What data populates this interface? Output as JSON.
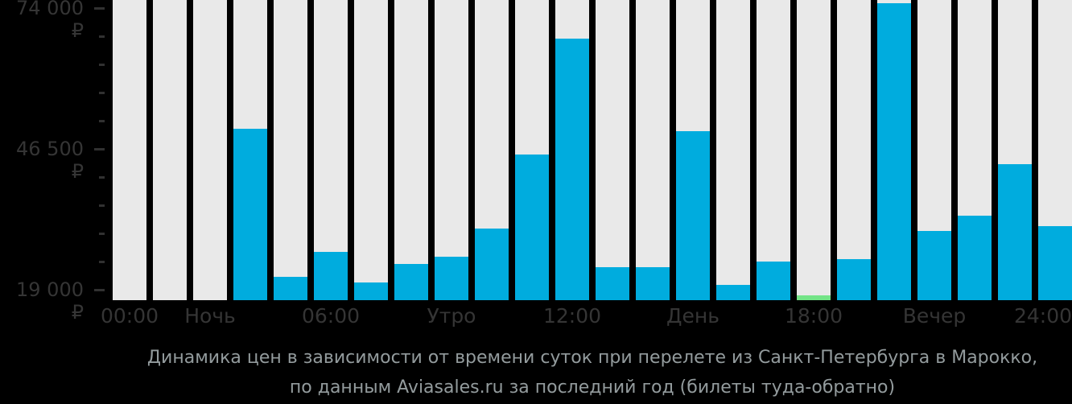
{
  "chart_data": {
    "type": "bar",
    "title": {
      "line1": "Динамика цен в зависимости от времени суток при перелете из Санкт-Петербурга в Марокко,",
      "line2": "по данным Aviasales.ru за последний год (билеты туда-обратно)"
    },
    "y_axis": {
      "unit": "₽",
      "labeled_ticks": [
        {
          "value": 74000,
          "label": "74 000 ₽"
        },
        {
          "value": 46500,
          "label": "46 500 ₽"
        },
        {
          "value": 19000,
          "label": "19 000 ₽"
        }
      ],
      "minor_step": 5500,
      "axis_range_top": 75500,
      "baseline_value": 17000,
      "grid": false
    },
    "x_axis": {
      "labels": [
        {
          "text": "00:00",
          "bar": 0
        },
        {
          "text": "Ночь",
          "bar": 2
        },
        {
          "text": "06:00",
          "bar": 5
        },
        {
          "text": "Утро",
          "bar": 8
        },
        {
          "text": "12:00",
          "bar": 11
        },
        {
          "text": "День",
          "bar": 14
        },
        {
          "text": "18:00",
          "bar": 17
        },
        {
          "text": "Вечер",
          "bar": 20
        },
        {
          "text": "24:00",
          "bar": 23
        }
      ]
    },
    "bars": {
      "count": 24,
      "values": [
        null,
        null,
        null,
        50500,
        21500,
        26500,
        20500,
        24000,
        25500,
        31000,
        45500,
        68000,
        23500,
        23500,
        50000,
        20000,
        24500,
        18000,
        25000,
        75000,
        30500,
        33500,
        43500,
        31500
      ],
      "min_value_index": 17,
      "legend_note": "price by time of day, cheapest hour highlighted"
    },
    "colors": {
      "bar": "#00ACDE",
      "bar_min": "#73E487",
      "bar_background": "#E9E9E9",
      "axis_text": "#353535",
      "tick_mark": "#313131",
      "title_text": "#939B9D",
      "background": "#000000"
    }
  }
}
